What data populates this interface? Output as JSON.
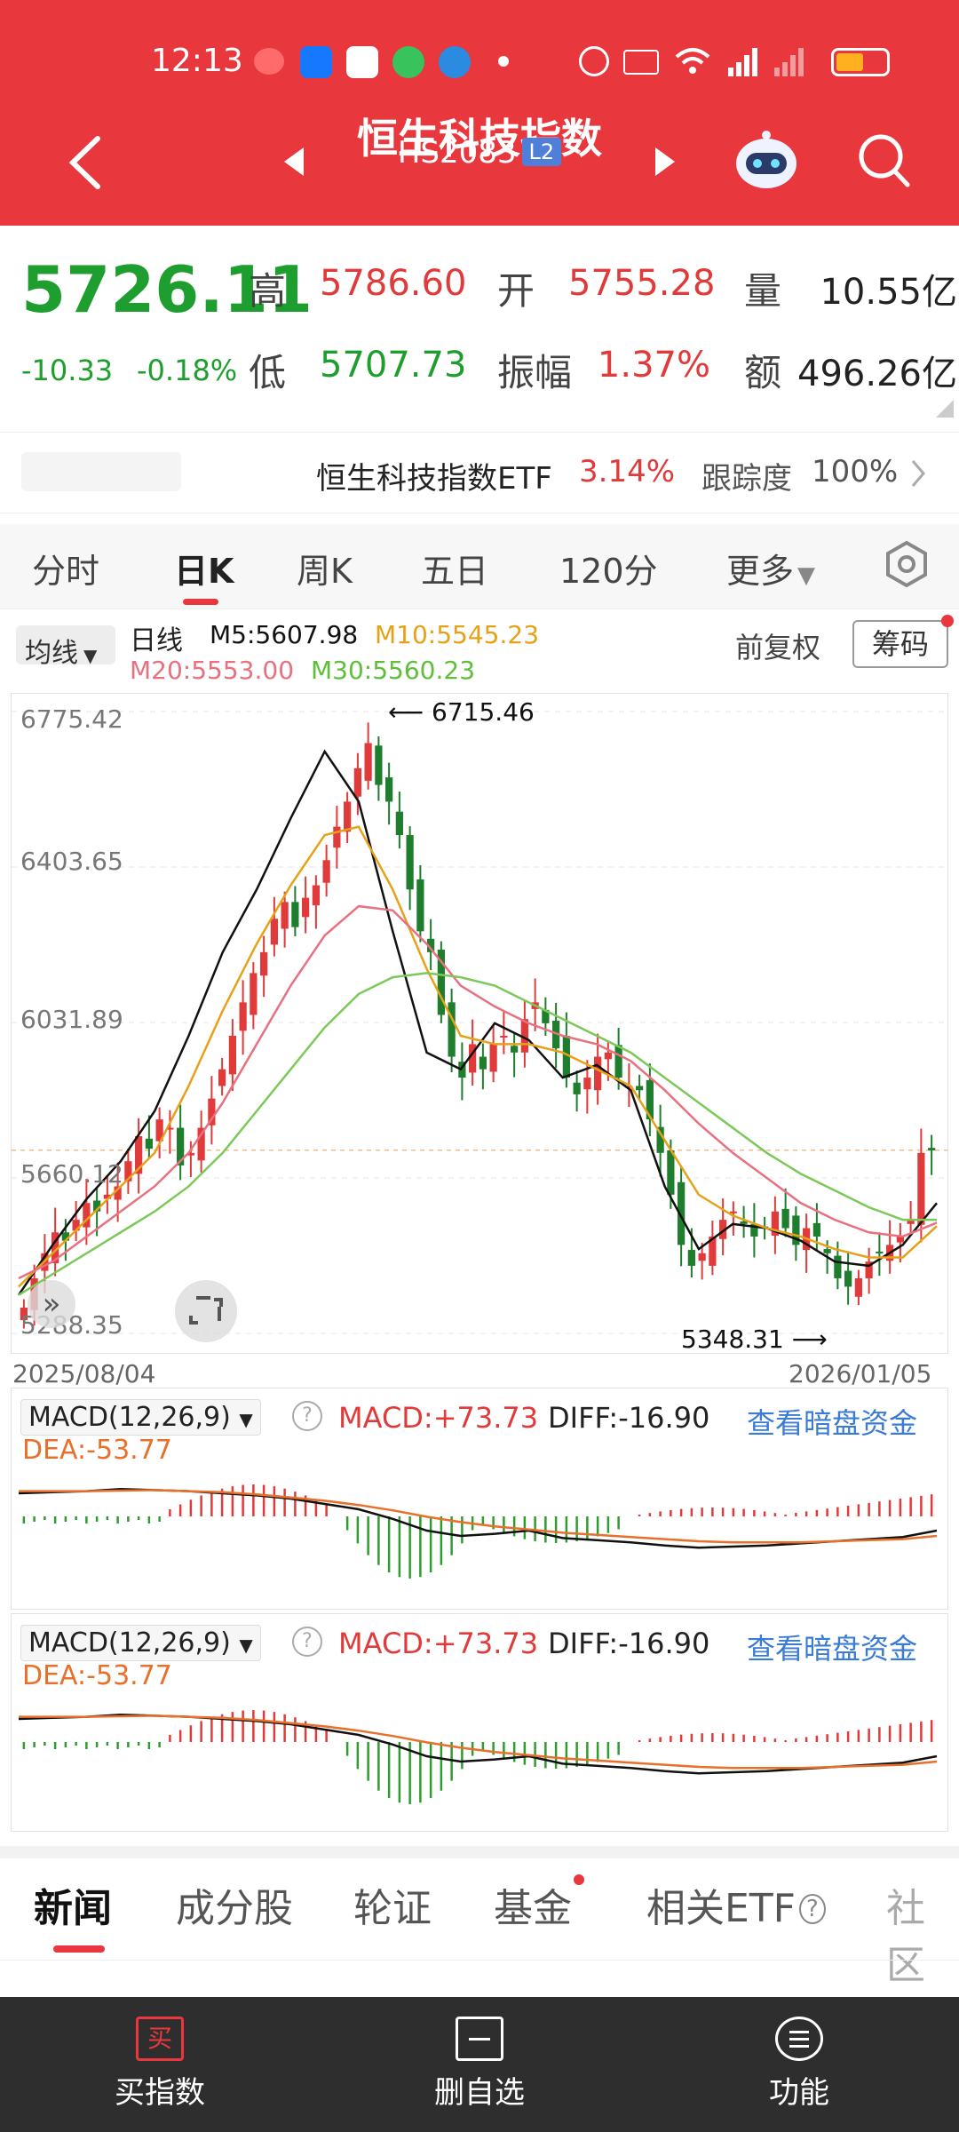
{
  "status_bar": {
    "time": "12:13"
  },
  "header": {
    "title": "恒生科技指数",
    "code": "HS2083",
    "level_badge": "L2"
  },
  "quote": {
    "price": "5726.11",
    "change": "-10.33",
    "change_pct": "-0.18%",
    "high_label": "高",
    "high": "5786.60",
    "open_label": "开",
    "open": "5755.28",
    "volume_label": "量",
    "volume": "10.55亿",
    "low_label": "低",
    "low": "5707.73",
    "amplitude_label": "振幅",
    "amplitude": "1.37%",
    "amount_label": "额",
    "amount": "496.26亿"
  },
  "etf_bar": {
    "name": "恒生科技指数ETF",
    "pct": "3.14%",
    "tracking_label": "跟踪度",
    "tracking": "100%"
  },
  "period_tabs": [
    "分时",
    "日K",
    "周K",
    "五日",
    "120分",
    "更多"
  ],
  "ma_panel": {
    "ma_selector": "均线",
    "kline_label": "日线",
    "m5": "M5:5607.98",
    "m10": "M10:5545.23",
    "m20": "M20:5553.00",
    "m30": "M30:5560.23",
    "adjust": "前复权",
    "chips": "筹码"
  },
  "kline": {
    "y_labels": [
      "6775.42",
      "6403.65",
      "6031.89",
      "5660.12",
      "5288.35"
    ],
    "max_marker": "6715.46",
    "min_marker": "5348.31",
    "start_date": "2025/08/04",
    "end_date": "2026/01/05"
  },
  "macd_panels": [
    {
      "label": "MACD(12,26,9)",
      "macd": "MACD:+73.73",
      "diff": "DIFF:-16.90",
      "dea": "DEA:-53.77",
      "link": "查看暗盘资金"
    },
    {
      "label": "MACD(12,26,9)",
      "macd": "MACD:+73.73",
      "diff": "DIFF:-16.90",
      "dea": "DEA:-53.77",
      "link": "查看暗盘资金"
    }
  ],
  "bottom_tabs": [
    "新闻",
    "成分股",
    "轮证",
    "基金",
    "相关ETF",
    "社区"
  ],
  "nav": {
    "buy": "买指数",
    "remove": "删自选",
    "functions": "功能",
    "buy_icon_char": "买"
  },
  "colors": {
    "header": "#e8383d",
    "up": "#e03a3a",
    "down": "#1e9e2e",
    "ma5": "#111111",
    "ma10": "#e6a117",
    "ma20": "#e8707f",
    "ma30": "#7cc95a",
    "link": "#3a7bd5"
  },
  "chart_data": {
    "type": "candlestick",
    "date_range": [
      "2025/08/04",
      "2026/01/05"
    ],
    "ylim": [
      5288.35,
      6775.42
    ],
    "y_ticks": [
      6775.42,
      6403.65,
      6031.89,
      5660.12,
      5288.35
    ],
    "annotations": {
      "max": 6715.46,
      "min": 5348.31
    },
    "close_path": [
      5350,
      5420,
      5480,
      5530,
      5510,
      5560,
      5600,
      5580,
      5620,
      5640,
      5700,
      5760,
      5730,
      5800,
      5780,
      5690,
      5720,
      5780,
      5850,
      5920,
      6000,
      6080,
      6150,
      6200,
      6280,
      6320,
      6260,
      6330,
      6360,
      6420,
      6500,
      6560,
      6640,
      6700,
      6600,
      6560,
      6480,
      6350,
      6250,
      6200,
      6050,
      5950,
      5900,
      5980,
      5920,
      5980,
      6000,
      5960,
      6040,
      6080,
      6030,
      5970,
      5900,
      5860,
      5900,
      5950,
      5960,
      5900,
      5880,
      5870,
      5800,
      5720,
      5620,
      5500,
      5450,
      5480,
      5520,
      5560,
      5580,
      5550,
      5520,
      5540,
      5580,
      5540,
      5500,
      5540,
      5520,
      5480,
      5420,
      5400,
      5420,
      5460,
      5480,
      5500,
      5520,
      5560,
      5720,
      5726
    ],
    "ma": {
      "ma5": [
        5380,
        5500,
        5610,
        5700,
        5820,
        6000,
        6200,
        6350,
        6520,
        6680,
        6560,
        6250,
        5960,
        5920,
        6030,
        5990,
        5900,
        5930,
        5870,
        5640,
        5490,
        5550,
        5540,
        5510,
        5460,
        5450,
        5500,
        5600
      ],
      "ma10": [
        5400,
        5480,
        5560,
        5640,
        5720,
        5880,
        6060,
        6220,
        6360,
        6480,
        6500,
        6350,
        6160,
        6000,
        5980,
        5980,
        5960,
        5920,
        5880,
        5750,
        5620,
        5570,
        5540,
        5520,
        5490,
        5470,
        5470,
        5545
      ],
      "ma20": [
        5420,
        5460,
        5520,
        5580,
        5640,
        5720,
        5840,
        5980,
        6120,
        6240,
        6310,
        6300,
        6220,
        6120,
        6070,
        6030,
        6000,
        5980,
        5940,
        5870,
        5790,
        5720,
        5660,
        5600,
        5560,
        5530,
        5520,
        5553
      ],
      "ma30": [
        5380,
        5430,
        5480,
        5530,
        5580,
        5640,
        5720,
        5820,
        5920,
        6020,
        6100,
        6140,
        6150,
        6140,
        6120,
        6080,
        6040,
        6000,
        5960,
        5900,
        5840,
        5780,
        5720,
        5670,
        5630,
        5590,
        5560,
        5560
      ]
    }
  }
}
